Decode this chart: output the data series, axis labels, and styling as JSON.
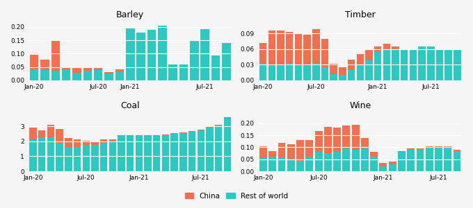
{
  "barley": {
    "china": [
      0.055,
      0.04,
      0.115,
      0.005,
      0.02,
      0.01,
      0.01,
      0.005,
      0.01,
      0.0,
      0.0,
      0.0,
      0.0,
      0.0,
      0.0,
      0.0,
      0.0,
      0.0,
      0.0
    ],
    "row": [
      0.04,
      0.038,
      0.035,
      0.042,
      0.028,
      0.035,
      0.038,
      0.025,
      0.03,
      0.195,
      0.178,
      0.188,
      0.205,
      0.06,
      0.058,
      0.148,
      0.192,
      0.092,
      0.14
    ],
    "ylim": [
      0,
      0.225
    ],
    "yticks": [
      0.0,
      0.05,
      0.1,
      0.15,
      0.2
    ],
    "title": "Barley",
    "x_tick_positions": [
      0,
      6,
      9,
      16
    ],
    "x_tick_labels": [
      "Jan-20",
      "Jul-20",
      "Jan-21",
      "Jul-21"
    ]
  },
  "timber": {
    "china": [
      0.04,
      0.065,
      0.065,
      0.06,
      0.06,
      0.06,
      0.065,
      0.055,
      0.02,
      0.015,
      0.02,
      0.02,
      0.02,
      0.01,
      0.01,
      0.005,
      0.0,
      0.0,
      0.0,
      0.0,
      0.0,
      0.0,
      0.0
    ],
    "row": [
      0.032,
      0.03,
      0.03,
      0.033,
      0.03,
      0.028,
      0.033,
      0.025,
      0.012,
      0.01,
      0.02,
      0.03,
      0.038,
      0.055,
      0.06,
      0.06,
      0.06,
      0.06,
      0.065,
      0.065,
      0.06,
      0.06,
      0.06
    ],
    "ylim": [
      0,
      0.115
    ],
    "yticks": [
      0.0,
      0.03,
      0.06,
      0.09
    ],
    "title": "Timber",
    "x_tick_positions": [
      0,
      6,
      13,
      19
    ],
    "x_tick_labels": [
      "Jan-20",
      "Jul-20",
      "Jan-21",
      "Jul-21"
    ]
  },
  "coal": {
    "china": [
      0.8,
      0.55,
      0.85,
      0.95,
      0.6,
      0.55,
      0.25,
      0.25,
      0.25,
      0.12,
      0.05,
      0.05,
      0.05,
      0.05,
      0.05,
      0.05,
      0.05,
      0.05,
      0.05,
      0.05,
      0.05,
      0.05,
      0.05
    ],
    "row": [
      2.1,
      2.2,
      2.25,
      1.85,
      1.62,
      1.6,
      1.78,
      1.75,
      1.9,
      2.0,
      2.38,
      2.38,
      2.38,
      2.38,
      2.38,
      2.42,
      2.48,
      2.55,
      2.65,
      2.72,
      2.92,
      3.05,
      3.55
    ],
    "ylim": [
      0,
      4.0
    ],
    "yticks": [
      0,
      1,
      2,
      3
    ],
    "title": "Coal",
    "x_tick_positions": [
      0,
      6,
      12,
      19
    ],
    "x_tick_labels": [
      "Jan-20",
      "Jul-20",
      "Jan-21",
      "Jul-21"
    ]
  },
  "wine": {
    "china": [
      0.05,
      0.025,
      0.065,
      0.06,
      0.085,
      0.07,
      0.085,
      0.11,
      0.1,
      0.095,
      0.105,
      0.045,
      0.02,
      0.015,
      0.01,
      0.005,
      0.005,
      0.005,
      0.005,
      0.005,
      0.005,
      0.005
    ],
    "row": [
      0.055,
      0.06,
      0.055,
      0.052,
      0.045,
      0.06,
      0.082,
      0.075,
      0.082,
      0.095,
      0.09,
      0.095,
      0.06,
      0.02,
      0.03,
      0.08,
      0.09,
      0.092,
      0.1,
      0.1,
      0.098,
      0.085
    ],
    "ylim": [
      0,
      0.25
    ],
    "yticks": [
      0.0,
      0.05,
      0.1,
      0.15,
      0.2
    ],
    "title": "Wine",
    "x_tick_positions": [
      0,
      6,
      13,
      19
    ],
    "x_tick_labels": [
      "Jan-20",
      "Jul-20",
      "Jan-21",
      "Jul-21"
    ]
  },
  "color_china": "#F07050",
  "color_row": "#2DC8C0",
  "background": "#f5f5f5"
}
